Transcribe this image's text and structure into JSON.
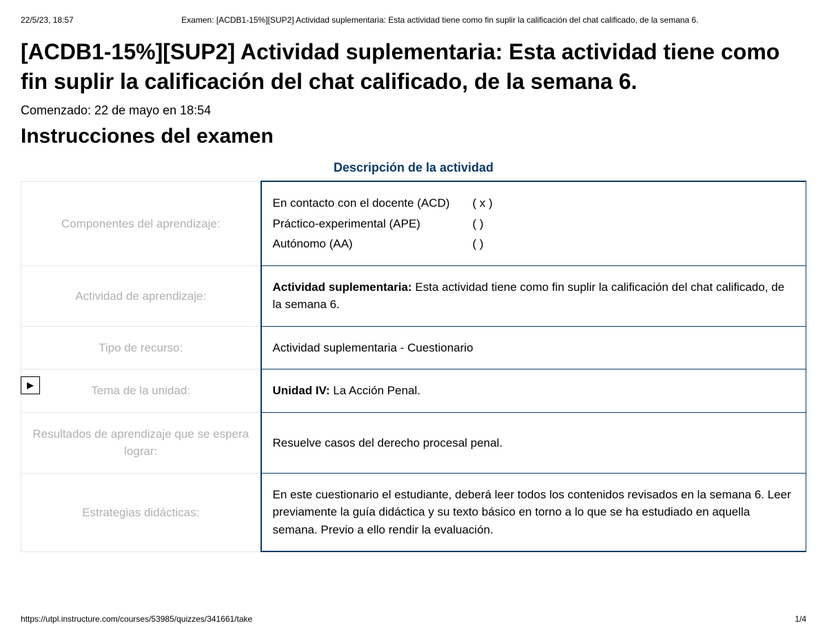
{
  "print": {
    "datetime": "22/5/23, 18:57",
    "doc_title": "Examen: [ACDB1-15%][SUP2] Actividad suplementaria: Esta actividad tiene como fin suplir la calificación del chat calificado, de la semana 6.",
    "footer_url": "https://utpl.instructure.com/courses/53985/quizzes/341661/take",
    "page": "1/4"
  },
  "title": "[ACDB1-15%][SUP2] Actividad suplementaria: Esta actividad tiene como fin suplir la calificación del chat calificado, de la semana 6.",
  "started": "Comenzado: 22 de mayo en 18:54",
  "instructions_heading": "Instrucciones del examen",
  "table": {
    "caption": "Descripción de la actividad",
    "caption_color": "#0a3b66",
    "border_color": "#0a3b66",
    "label_color": "#b0b0b0",
    "label_border_color": "#e6e6e6",
    "rows": [
      {
        "label": "Componentes del aprendizaje:",
        "components": [
          {
            "name": "En contacto con el docente (ACD)",
            "mark": "(  x  )"
          },
          {
            "name": "Práctico-experimental (APE)",
            "mark": "(      )"
          },
          {
            "name": "Autónomo (AA)",
            "mark": "(      )"
          }
        ]
      },
      {
        "label": "Actividad de aprendizaje:",
        "bold_prefix": "Actividad suplementaria:",
        "text": " Esta actividad tiene como fin suplir la calificación del chat calificado, de la semana 6."
      },
      {
        "label": "Tipo de recurso:",
        "text": "Actividad suplementaria - Cuestionario"
      },
      {
        "label": "Tema de la unidad:",
        "bold_prefix": "Unidad IV:",
        "text": " La Acción Penal."
      },
      {
        "label": "Resultados de aprendizaje que se espera lograr:",
        "text": "Resuelve casos del derecho procesal penal."
      },
      {
        "label": "Estrategias didácticas:",
        "text": "En este cuestionario el estudiante, deberá leer todos los contenidos revisados en la semana 6. Leer previamente la guía didáctica y su texto básico en torno a lo que se ha estudiado en aquella semana. Previo a ello rendir la evaluación."
      }
    ]
  },
  "expand_icon": "▶"
}
